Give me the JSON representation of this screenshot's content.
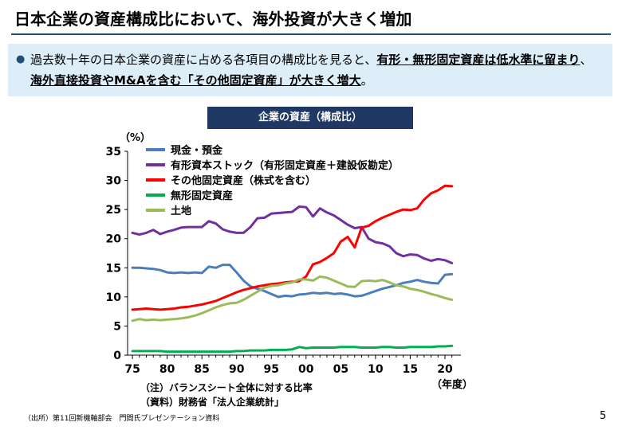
{
  "slide": {
    "title": "日本企業の資産構成比において、海外投資が大きく増加",
    "summary_plain": "過去数十年の日本企業の資産に占める各項目の構成比を見ると、",
    "summary_emph1": "有形・無形固定資産は低水準に留まり",
    "summary_mid": "、",
    "summary_emph2": "海外直接投資やM&Aを含む「その他固定資産」が大きく増大",
    "summary_end": "。",
    "note1": "（注）バランスシート全体に対する比率",
    "note2": "（資料）財務省「法人企業統計」",
    "source": "（出所）第11回新機軸部会　門間氏プレゼンテーション資料",
    "page_number": "5"
  },
  "chart_data": {
    "type": "line",
    "title": "企業の資産（構成比）",
    "ylabel": "（%）",
    "xlabel": "（年度）",
    "ylim": [
      0,
      35
    ],
    "yticks": [
      0,
      5,
      10,
      15,
      20,
      25,
      30,
      35
    ],
    "xticks": [
      1975,
      1980,
      1985,
      1990,
      1995,
      2000,
      2005,
      2010,
      2015,
      2020
    ],
    "xtick_labels": [
      "75",
      "80",
      "85",
      "90",
      "95",
      "00",
      "05",
      "10",
      "15",
      "20"
    ],
    "grid": false,
    "legend_position": "top-left",
    "x": [
      1975,
      1976,
      1977,
      1978,
      1979,
      1980,
      1981,
      1982,
      1983,
      1984,
      1985,
      1986,
      1987,
      1988,
      1989,
      1990,
      1991,
      1992,
      1993,
      1994,
      1995,
      1996,
      1997,
      1998,
      1999,
      2000,
      2001,
      2002,
      2003,
      2004,
      2005,
      2006,
      2007,
      2008,
      2009,
      2010,
      2011,
      2012,
      2013,
      2014,
      2015,
      2016,
      2017,
      2018,
      2019,
      2020,
      2021
    ],
    "series": [
      {
        "name": "現金・預金",
        "color": "#4a7ebb",
        "values": [
          15.0,
          15.0,
          14.9,
          14.8,
          14.6,
          14.2,
          14.1,
          14.2,
          14.1,
          14.2,
          14.1,
          15.2,
          15.0,
          15.5,
          15.5,
          14.2,
          12.8,
          11.8,
          11.4,
          11.0,
          10.5,
          10.0,
          10.2,
          10.1,
          10.4,
          10.5,
          10.7,
          10.6,
          10.7,
          10.5,
          10.6,
          10.4,
          10.1,
          10.2,
          10.6,
          11.0,
          11.4,
          11.7,
          12.0,
          12.4,
          12.6,
          12.9,
          12.6,
          12.4,
          12.3,
          13.8,
          13.9
        ]
      },
      {
        "name": "有形資本ストック（有形固定資産＋建設仮勘定）",
        "color": "#7030a0",
        "values": [
          21.0,
          20.7,
          21.0,
          21.5,
          20.8,
          21.2,
          21.5,
          21.9,
          22.0,
          22.0,
          22.0,
          23.0,
          22.6,
          21.6,
          21.2,
          21.0,
          21.0,
          22.0,
          23.5,
          23.6,
          24.3,
          24.4,
          24.5,
          24.6,
          25.5,
          25.4,
          23.8,
          25.2,
          24.5,
          24.0,
          23.2,
          22.4,
          21.8,
          22.0,
          20.0,
          19.4,
          19.2,
          18.7,
          17.5,
          17.0,
          17.3,
          17.2,
          16.6,
          16.2,
          16.5,
          16.3,
          15.8
        ]
      },
      {
        "name": "その他固定資産（株式を含む）",
        "color": "#ff0000",
        "values": [
          7.8,
          7.9,
          8.0,
          7.9,
          7.8,
          7.9,
          8.0,
          8.2,
          8.3,
          8.5,
          8.7,
          9.0,
          9.3,
          9.8,
          10.3,
          10.8,
          11.2,
          11.5,
          11.8,
          12.0,
          12.2,
          12.3,
          12.5,
          12.6,
          12.7,
          13.5,
          15.6,
          16.0,
          16.7,
          17.5,
          19.5,
          20.3,
          18.5,
          21.9,
          22.2,
          23.0,
          23.6,
          24.1,
          24.6,
          25.0,
          24.9,
          25.2,
          26.7,
          27.8,
          28.3,
          29.1,
          29.0
        ]
      },
      {
        "name": "無形固定資産",
        "color": "#00b050",
        "values": [
          0.7,
          0.7,
          0.7,
          0.7,
          0.7,
          0.6,
          0.6,
          0.6,
          0.6,
          0.6,
          0.6,
          0.6,
          0.6,
          0.6,
          0.6,
          0.7,
          0.7,
          0.8,
          0.8,
          0.8,
          0.9,
          0.9,
          0.9,
          1.0,
          1.4,
          1.2,
          1.3,
          1.3,
          1.3,
          1.3,
          1.4,
          1.4,
          1.4,
          1.3,
          1.3,
          1.3,
          1.4,
          1.4,
          1.3,
          1.3,
          1.4,
          1.4,
          1.4,
          1.4,
          1.5,
          1.5,
          1.6
        ]
      },
      {
        "name": "土地",
        "color": "#9bbb59",
        "values": [
          5.9,
          6.2,
          6.0,
          6.1,
          6.0,
          6.1,
          6.2,
          6.3,
          6.5,
          6.8,
          7.2,
          7.7,
          8.2,
          8.6,
          8.9,
          9.0,
          9.5,
          10.2,
          10.9,
          11.6,
          11.9,
          12.0,
          12.3,
          12.5,
          13.0,
          13.0,
          12.8,
          13.5,
          13.3,
          12.8,
          12.3,
          11.8,
          11.7,
          12.7,
          12.8,
          12.7,
          12.9,
          12.5,
          12.0,
          11.8,
          11.4,
          11.2,
          10.9,
          10.5,
          10.2,
          9.8,
          9.5
        ]
      }
    ]
  }
}
